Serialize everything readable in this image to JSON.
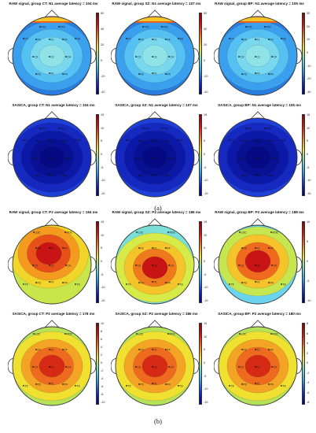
{
  "captions": {
    "a": "(a)",
    "b": "(b)"
  },
  "panels": [
    {
      "title": "RAW signal, group CT: N1 average latency = 104 ms",
      "ticks": [
        "60",
        "40",
        "20",
        "0",
        "-20",
        "-40"
      ],
      "map": "n1raw"
    },
    {
      "title": "RAW signal, group SZ: N1 average latency = 107 ms",
      "ticks": [
        "60",
        "40",
        "20",
        "0",
        "-20",
        "-40"
      ],
      "map": "n1raw"
    },
    {
      "title": "RAW signal, group BP: N1 average latency = 105 ms",
      "ticks": [
        "30",
        "20",
        "10",
        "0",
        "-10",
        "-20",
        "-30"
      ],
      "map": "n1raw"
    },
    {
      "title": "SASICA, group CT: N1 average latency = 104 ms",
      "ticks": [
        "15",
        "10",
        "5",
        "0",
        "-5",
        "-10",
        "-15"
      ],
      "map": "n1sas"
    },
    {
      "title": "SASICA, group SZ: N1 average latency = 107 ms",
      "ticks": [
        "15",
        "10",
        "5",
        "0",
        "-5",
        "-10",
        "-15"
      ],
      "map": "n1sas"
    },
    {
      "title": "SASICA, group BP: N1 average latency = 105 ms",
      "ticks": [
        "15",
        "10",
        "5",
        "0",
        "-5",
        "-10",
        "-15"
      ],
      "map": "n1sas"
    },
    {
      "title": "RAW signal, group CT: P2 average latency = 184 ms",
      "ticks": [
        "15",
        "10",
        "5",
        "0",
        "-5",
        "-10",
        "-15"
      ],
      "map": "p2rawct"
    },
    {
      "title": "RAW signal, group SZ: P2 average latency = 186 ms",
      "ticks": [
        "15",
        "10",
        "5",
        "0",
        "-5",
        "-10",
        "-15"
      ],
      "map": "p2rawsz"
    },
    {
      "title": "RAW signal, group BP: P2 average latency = 188 ms",
      "ticks": [
        "10",
        "5",
        "0",
        "-5",
        "-10"
      ],
      "map": "p2rawbp"
    },
    {
      "title": "SASICA, group CT: P2 average latency = 178 ms",
      "ticks": [
        "10",
        "8",
        "6",
        "4",
        "2",
        "0",
        "-2",
        "-4",
        "-6",
        "-8",
        "-10"
      ],
      "map": "p2sas"
    },
    {
      "title": "SASICA, group SZ: P2 average latency = 186 ms",
      "ticks": [
        "15",
        "10",
        "5",
        "0",
        "-5",
        "-10",
        "-15"
      ],
      "map": "p2sas"
    },
    {
      "title": "SASICA, group BP: P2 average latency = 180 ms",
      "ticks": [
        "8",
        "6",
        "4",
        "2",
        "0",
        "-2",
        "-4",
        "-6",
        "-8"
      ],
      "map": "p2sas"
    }
  ],
  "electrodes": {
    "upper": [
      "FP1",
      "FP2",
      "F7",
      "F3",
      "Fz",
      "F4",
      "F8",
      "C3",
      "Cz",
      "C4",
      "P3",
      "Pz",
      "P4"
    ],
    "lower": [
      "LOC",
      "ROC",
      "F3",
      "Fz",
      "F4",
      "C3",
      "Cz",
      "C4",
      "P3",
      "Pz",
      "P4",
      "T5",
      "T6"
    ]
  }
}
